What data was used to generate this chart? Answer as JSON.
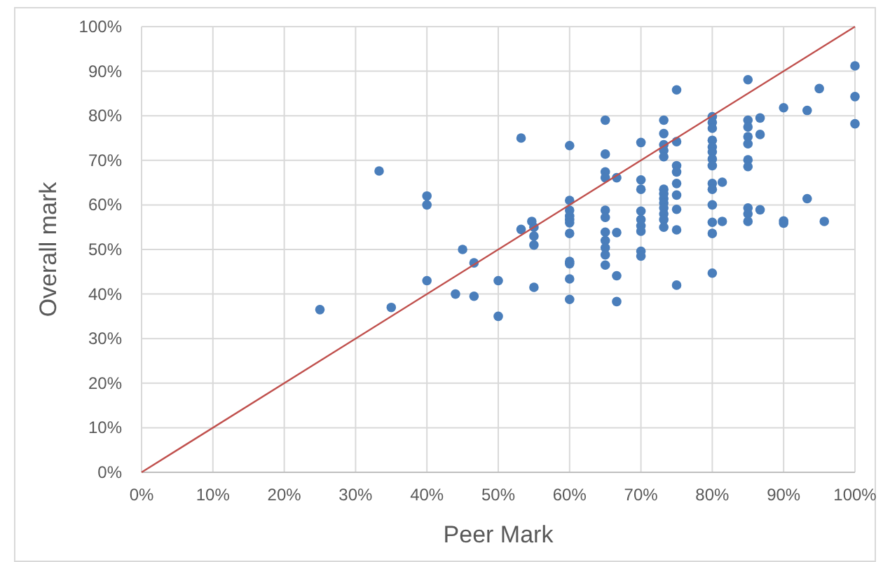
{
  "chart_data": {
    "type": "scatter",
    "xlabel": "Peer Mark",
    "ylabel": "Overall mark",
    "xlim": [
      0,
      100
    ],
    "ylim": [
      0,
      100
    ],
    "xticks": [
      {
        "value": 0,
        "label": "0%"
      },
      {
        "value": 10,
        "label": "10%"
      },
      {
        "value": 20,
        "label": "20%"
      },
      {
        "value": 30,
        "label": "30%"
      },
      {
        "value": 40,
        "label": "40%"
      },
      {
        "value": 50,
        "label": "50%"
      },
      {
        "value": 60,
        "label": "60%"
      },
      {
        "value": 70,
        "label": "70%"
      },
      {
        "value": 80,
        "label": "80%"
      },
      {
        "value": 90,
        "label": "90%"
      },
      {
        "value": 100,
        "label": "100%"
      }
    ],
    "yticks": [
      {
        "value": 0,
        "label": "0%"
      },
      {
        "value": 10,
        "label": "10%"
      },
      {
        "value": 20,
        "label": "20%"
      },
      {
        "value": 30,
        "label": "30%"
      },
      {
        "value": 40,
        "label": "40%"
      },
      {
        "value": 50,
        "label": "50%"
      },
      {
        "value": 60,
        "label": "60%"
      },
      {
        "value": 70,
        "label": "70%"
      },
      {
        "value": 80,
        "label": "80%"
      },
      {
        "value": 90,
        "label": "90%"
      },
      {
        "value": 100,
        "label": "100%"
      }
    ],
    "grid": true,
    "series": [
      {
        "color": "#4a7ebb",
        "marker": "circle",
        "x": [
          25,
          33.3,
          35,
          40,
          40,
          40,
          44,
          45,
          46.6,
          46.6,
          50,
          50,
          53.2,
          53.2,
          54.7,
          55,
          55,
          55,
          55,
          60,
          60,
          60,
          60,
          60,
          60,
          60,
          60,
          60,
          60,
          60,
          65,
          65,
          65,
          65,
          65,
          65,
          65,
          65,
          65,
          65,
          65,
          66.6,
          66.6,
          66.6,
          66.6,
          70,
          70,
          70,
          70,
          70,
          70,
          70,
          70,
          70,
          73.2,
          73.2,
          73.2,
          73.2,
          73.2,
          73.2,
          73.2,
          73.2,
          73.2,
          73.2,
          73.2,
          73.2,
          73.2,
          75,
          75,
          75,
          75,
          75,
          75,
          75,
          75,
          75,
          80,
          80,
          80,
          80,
          80,
          80,
          80,
          80,
          80,
          80,
          80,
          80,
          80,
          80,
          81.4,
          81.4,
          85,
          85,
          85,
          85,
          85,
          85,
          85,
          85,
          85,
          85,
          86.7,
          86.7,
          86.7,
          90,
          90,
          90,
          93.3,
          93.3,
          95,
          95.7,
          100,
          100,
          100
        ],
        "values": [
          36.5,
          67.6,
          37,
          62,
          60,
          43,
          40,
          50,
          47,
          39.5,
          43,
          35,
          75,
          54.5,
          56.3,
          55,
          53,
          51,
          41.5,
          73.3,
          61,
          58.8,
          57.5,
          56.7,
          56,
          53.6,
          47.3,
          46.8,
          43.4,
          38.8,
          79,
          71.4,
          67.4,
          66.1,
          58.8,
          57.2,
          53.9,
          52,
          50.4,
          48.8,
          46.5,
          66.1,
          53.8,
          44.1,
          38.3,
          74,
          65.6,
          63.5,
          58.6,
          56.7,
          55.3,
          54.1,
          49.6,
          48.5,
          79,
          76,
          73.5,
          72.2,
          70.8,
          63.5,
          62.5,
          61.4,
          60.4,
          59.3,
          58,
          56.7,
          55,
          85.8,
          74.2,
          68.8,
          67.4,
          64.8,
          62.2,
          59,
          54.4,
          42,
          79.8,
          78.5,
          77.2,
          74.5,
          73,
          71.9,
          70.3,
          68.8,
          64.8,
          63.5,
          60,
          56.1,
          53.6,
          44.7,
          65.1,
          56.3,
          88.1,
          79,
          77.5,
          75.3,
          73.7,
          70.1,
          68.6,
          59.3,
          58,
          56.3,
          79.5,
          75.8,
          58.9,
          81.8,
          56.4,
          55.9,
          81.2,
          61.4,
          86.1,
          56.3,
          91.2,
          84.3,
          78.2
        ]
      },
      {
        "type": "line",
        "color": "#c0504d",
        "marker": "none",
        "x": [
          0,
          100
        ],
        "values": [
          0,
          100
        ]
      }
    ]
  }
}
